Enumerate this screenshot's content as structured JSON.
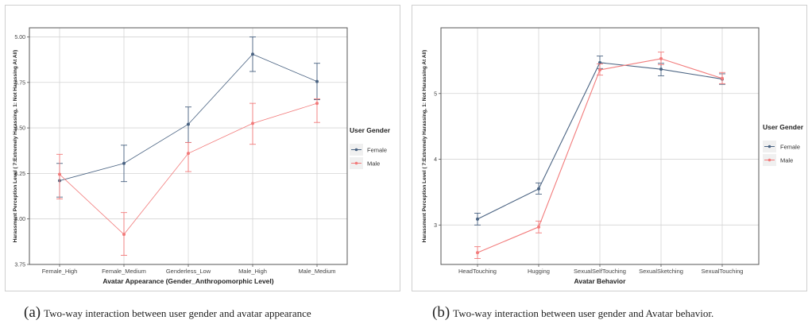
{
  "chart_data": [
    {
      "type": "line",
      "panel_letter": "(a)",
      "caption": "Two-way interaction between user gender and avatar appearance",
      "xlabel": "Avatar Appearance (Gender_Anthropomorphic Level)",
      "ylabel": "Harassment Perception Level ( 7:Extremely Harassing, 1: Not Harassing At All)",
      "categories": [
        "Female_High",
        "Female_Medium",
        "Genderless_Low",
        "Male_High",
        "Male_Medium"
      ],
      "ylim": [
        3.75,
        5.05
      ],
      "yticks": [
        3.75,
        4.0,
        4.25,
        4.5,
        4.75,
        5.0
      ],
      "ytick_labels": [
        "3.75",
        "4.00",
        "4.25",
        "4.50",
        "4.75",
        "5.00"
      ],
      "grid": true,
      "legend": {
        "title": "User Gender",
        "placement": "right"
      },
      "series": [
        {
          "name": "Female",
          "color": "#4a6382",
          "values": [
            4.21,
            4.305,
            4.52,
            4.905,
            4.755
          ],
          "err_low": [
            4.12,
            4.205,
            4.42,
            4.81,
            4.655
          ],
          "err_high": [
            4.305,
            4.405,
            4.615,
            5.0,
            4.855
          ]
        },
        {
          "name": "Male",
          "color": "#f27b7b",
          "values": [
            4.245,
            3.915,
            4.36,
            4.525,
            4.635
          ],
          "err_low": [
            4.11,
            3.8,
            4.26,
            4.41,
            4.53
          ],
          "err_high": [
            4.355,
            4.035,
            4.42,
            4.635,
            4.66
          ]
        }
      ]
    },
    {
      "type": "line",
      "panel_letter": "(b)",
      "caption": "Two-way interaction between user gender and Avatar behavior.",
      "xlabel": "Avatar Behavior",
      "ylabel": "Harassment Perception Level ( 7:Extremely Harassing, 1: Not Harassing At All)",
      "categories": [
        "HeadTouching",
        "Hugging",
        "SexualSelfTouching",
        "SexualSketching",
        "SexualTouching"
      ],
      "ylim": [
        2.4,
        6.0
      ],
      "yticks": [
        3,
        4,
        5
      ],
      "ytick_labels": [
        "3",
        "4",
        "5"
      ],
      "grid": true,
      "legend": {
        "title": "User Gender",
        "placement": "right"
      },
      "series": [
        {
          "name": "Female",
          "color": "#4a6382",
          "values": [
            3.09,
            3.55,
            5.47,
            5.37,
            5.22
          ],
          "err_low": [
            3.0,
            3.47,
            5.38,
            5.27,
            5.14
          ],
          "err_high": [
            3.18,
            3.64,
            5.57,
            5.46,
            5.3
          ]
        },
        {
          "name": "Male",
          "color": "#f27b7b",
          "values": [
            2.58,
            2.97,
            5.36,
            5.53,
            5.23
          ],
          "err_low": [
            2.49,
            2.88,
            5.28,
            5.44,
            5.15
          ],
          "err_high": [
            2.67,
            3.06,
            5.45,
            5.63,
            5.32
          ]
        }
      ]
    }
  ]
}
